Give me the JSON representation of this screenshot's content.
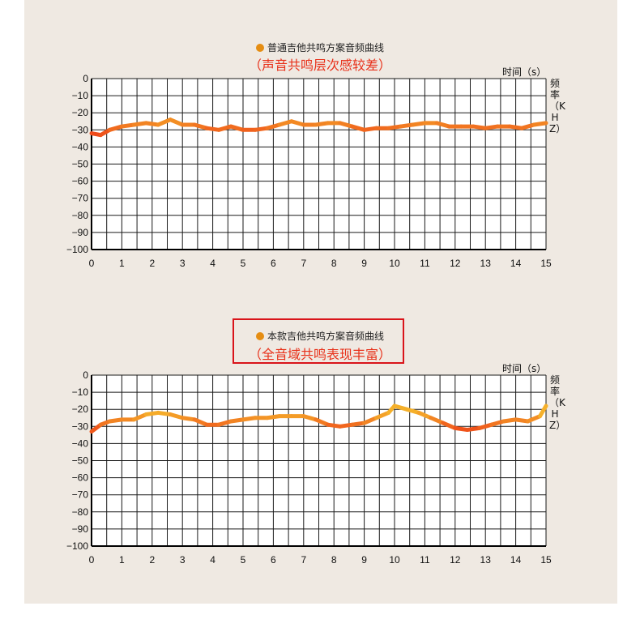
{
  "charts": [
    {
      "legend": "普通吉他共鸣方案音频曲线",
      "subtitle": "（声音共鸣层次感较差）",
      "xunit": "时间（s）",
      "yunit": "频率（KHZ）"
    },
    {
      "legend": "本款吉他共鸣方案音频曲线",
      "subtitle": "（全音域共鸣表现丰富）",
      "xunit": "时间（s）",
      "yunit": "频率（KHZ）"
    }
  ],
  "colors": {
    "dot": "#e58d12",
    "subtitle": "#e8311a",
    "box": "#d9141a",
    "line_low": "#f5b02a",
    "line_high": "#ee3a16"
  },
  "chart_data": [
    {
      "type": "line",
      "title": "普通吉他共鸣方案音频曲线",
      "xlabel": "时间（s）",
      "ylabel": "频率（KHZ）",
      "xlim": [
        0,
        15
      ],
      "ylim": [
        -100,
        0
      ],
      "xticks": [
        0,
        1,
        2,
        3,
        4,
        5,
        6,
        7,
        8,
        9,
        10,
        11,
        12,
        13,
        14,
        15
      ],
      "yticks": [
        0,
        -10,
        -20,
        -30,
        -40,
        -50,
        -60,
        -70,
        -80,
        -90,
        -100
      ],
      "grid": true,
      "x": [
        0,
        0.3,
        0.6,
        1,
        1.4,
        1.8,
        2.2,
        2.6,
        3,
        3.4,
        3.8,
        4.2,
        4.6,
        5,
        5.4,
        5.8,
        6.2,
        6.6,
        7,
        7.4,
        7.8,
        8.2,
        8.6,
        9,
        9.4,
        9.8,
        10.2,
        10.6,
        11,
        11.4,
        11.8,
        12.2,
        12.6,
        13,
        13.4,
        13.8,
        14.2,
        14.6,
        15
      ],
      "y": [
        -32,
        -33,
        -30,
        -28,
        -27,
        -26,
        -27,
        -24,
        -27,
        -27,
        -29,
        -30,
        -28,
        -30,
        -30,
        -29,
        -27,
        -25,
        -27,
        -27,
        -26,
        -26,
        -28,
        -30,
        -29,
        -29,
        -28,
        -27,
        -26,
        -26,
        -28,
        -28,
        -28,
        -29,
        -28,
        -28,
        -29,
        -27,
        -26
      ]
    },
    {
      "type": "line",
      "title": "本款吉他共鸣方案音频曲线",
      "xlabel": "时间（s）",
      "ylabel": "频率（KHZ）",
      "xlim": [
        0,
        15
      ],
      "ylim": [
        -100,
        0
      ],
      "xticks": [
        0,
        1,
        2,
        3,
        4,
        5,
        6,
        7,
        8,
        9,
        10,
        11,
        12,
        13,
        14,
        15
      ],
      "yticks": [
        0,
        -10,
        -20,
        -30,
        -40,
        -50,
        -60,
        -70,
        -80,
        -90,
        -100
      ],
      "grid": true,
      "x": [
        0,
        0.3,
        0.6,
        1,
        1.4,
        1.8,
        2.2,
        2.6,
        3,
        3.4,
        3.8,
        4.2,
        4.6,
        5,
        5.4,
        5.8,
        6.2,
        6.6,
        7,
        7.4,
        7.8,
        8.2,
        8.6,
        9,
        9.4,
        9.8,
        10,
        10.4,
        10.8,
        11.2,
        11.6,
        12,
        12.4,
        12.8,
        13.2,
        13.6,
        14,
        14.4,
        14.8,
        15
      ],
      "y": [
        -33,
        -29,
        -27,
        -26,
        -26,
        -23,
        -22,
        -23,
        -25,
        -26,
        -29,
        -29,
        -27,
        -26,
        -25,
        -25,
        -24,
        -24,
        -24,
        -26,
        -29,
        -30,
        -29,
        -28,
        -25,
        -22,
        -18,
        -20,
        -22,
        -25,
        -28,
        -31,
        -32,
        -31,
        -29,
        -27,
        -26,
        -27,
        -24,
        -18
      ]
    }
  ]
}
